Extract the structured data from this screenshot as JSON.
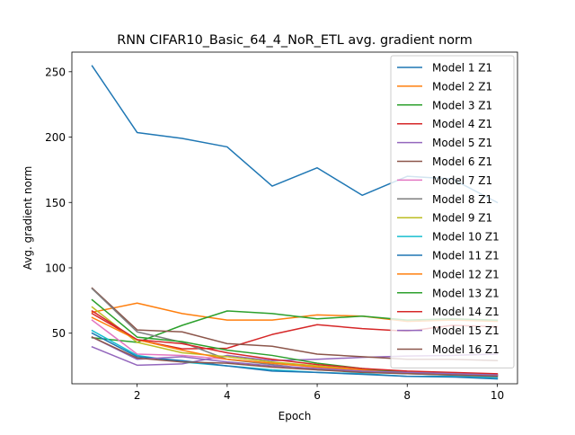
{
  "chart_data": {
    "type": "line",
    "title": "RNN CIFAR10_Basic_64_4_NoR_ETL avg. gradient norm",
    "xlabel": "Epoch",
    "ylabel": "Avg. gradient norm",
    "xlim": [
      0.55,
      10.45
    ],
    "ylim": [
      11.3,
      265
    ],
    "xticks": [
      2,
      4,
      6,
      8,
      10
    ],
    "yticks": [
      50,
      100,
      150,
      200,
      250
    ],
    "grid": false,
    "legend_position": "top-right",
    "x": [
      1,
      2,
      3,
      4,
      5,
      6,
      7,
      8,
      9,
      10
    ],
    "series": [
      {
        "name": "Model 1 Z1",
        "color": "#1f77b4",
        "values": [
          254.5,
          203.5,
          199,
          192.5,
          162.5,
          176.5,
          155.5,
          170,
          168,
          150
        ]
      },
      {
        "name": "Model 2 Z1",
        "color": "#ff7f0e",
        "values": [
          66,
          73,
          65,
          60,
          60,
          64,
          63,
          59,
          60,
          59
        ]
      },
      {
        "name": "Model 3 Z1",
        "color": "#2ca02c",
        "values": [
          46.5,
          43,
          56,
          67,
          65,
          61,
          63,
          60,
          61,
          60
        ]
      },
      {
        "name": "Model 4 Z1",
        "color": "#d62728",
        "values": [
          65,
          45,
          38,
          38.5,
          49,
          56.5,
          53.5,
          51.5,
          56,
          55
        ]
      },
      {
        "name": "Model 5 Z1",
        "color": "#9467bd",
        "values": [
          39.5,
          25.5,
          26.5,
          33,
          29,
          30,
          31.5,
          32.5,
          33,
          34
        ]
      },
      {
        "name": "Model 6 Z1",
        "color": "#8c564b",
        "values": [
          84.5,
          52.5,
          51,
          42,
          40,
          34,
          32,
          30,
          30,
          29
        ]
      },
      {
        "name": "Model 7 Z1",
        "color": "#e377c2",
        "values": [
          60,
          34,
          33,
          30,
          27,
          24,
          22,
          20.5,
          19,
          18
        ]
      },
      {
        "name": "Model 8 Z1",
        "color": "#7f7f7f",
        "values": [
          84,
          51,
          43,
          30,
          26,
          22,
          20.5,
          19,
          18,
          17
        ]
      },
      {
        "name": "Model 9 Z1",
        "color": "#bcbd22",
        "values": [
          70,
          43,
          35,
          32,
          28,
          25,
          22,
          20,
          19,
          18
        ]
      },
      {
        "name": "Model 10 Z1",
        "color": "#17becf",
        "values": [
          52,
          33,
          28,
          25,
          22,
          20,
          19,
          17,
          17,
          16
        ]
      },
      {
        "name": "Model 11 Z1",
        "color": "#1f77b4",
        "values": [
          50,
          32,
          29,
          25,
          21,
          20,
          18.5,
          17,
          16.5,
          15
        ]
      },
      {
        "name": "Model 12 Z1",
        "color": "#ff7f0e",
        "values": [
          62,
          45,
          37,
          30,
          27,
          24,
          22,
          20,
          19,
          18
        ]
      },
      {
        "name": "Model 13 Z1",
        "color": "#2ca02c",
        "values": [
          75.5,
          47,
          43.5,
          37,
          33,
          27,
          23,
          20,
          19,
          18
        ]
      },
      {
        "name": "Model 14 Z1",
        "color": "#d62728",
        "values": [
          67,
          45,
          42,
          35,
          30,
          26,
          23,
          21,
          20,
          19
        ]
      },
      {
        "name": "Model 15 Z1",
        "color": "#9467bd",
        "values": [
          47,
          30,
          32,
          28,
          25,
          23,
          21,
          20,
          19,
          18
        ]
      },
      {
        "name": "Model 16 Z1",
        "color": "#8c564b",
        "values": [
          47,
          31,
          28,
          27,
          24,
          22,
          20,
          19,
          18,
          17
        ]
      }
    ]
  }
}
